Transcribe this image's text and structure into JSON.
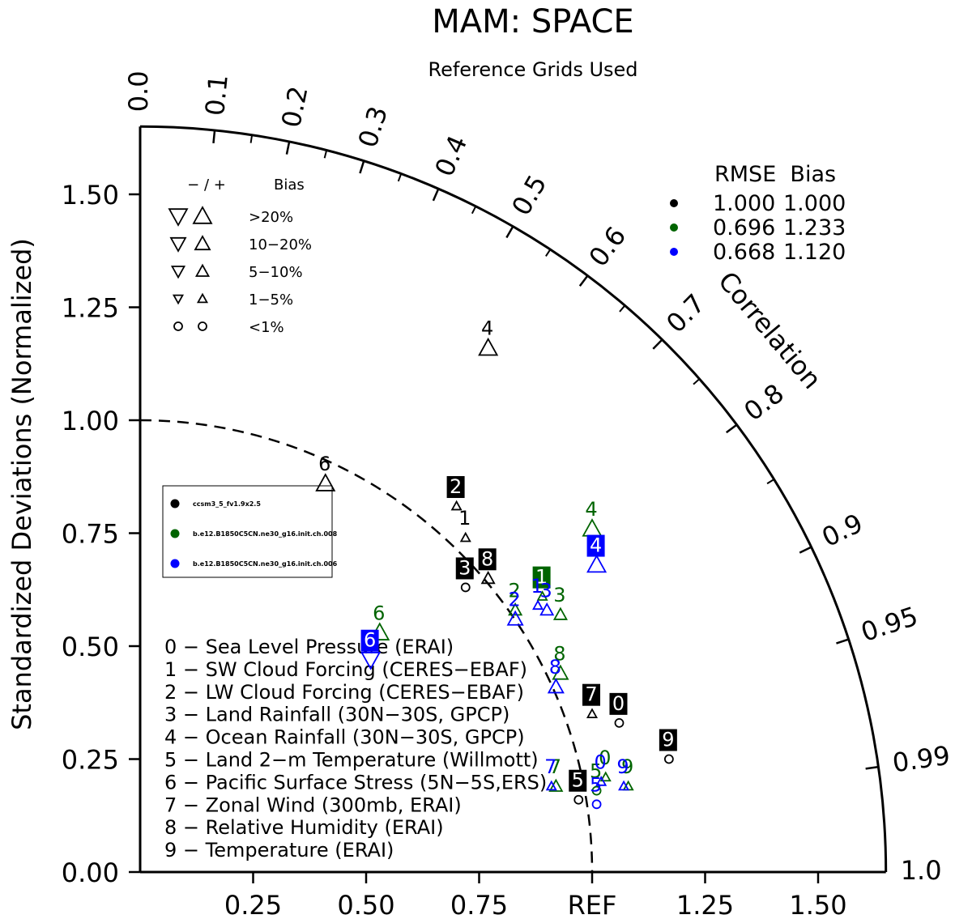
{
  "chart_data": {
    "type": "scatter",
    "subtype": "taylor-diagram",
    "title": "MAM: SPACE",
    "subtitle": "Reference Grids Used",
    "ylabel": "Standardized Deviations (Normalized)",
    "angular_label": "Correlation",
    "ref_label": "REF",
    "std_range": [
      0,
      1.65
    ],
    "y_ticks": [
      "0.00",
      "0.25",
      "0.50",
      "0.75",
      "1.00",
      "1.25",
      "1.50"
    ],
    "x_ticks": [
      "0.25",
      "0.50",
      "0.75",
      "REF",
      "1.25",
      "1.50"
    ],
    "corr_ticks": [
      "0.0",
      "0.1",
      "0.2",
      "0.3",
      "0.4",
      "0.5",
      "0.6",
      "0.7",
      "0.8",
      "0.9",
      "0.95",
      "0.99",
      "1.0"
    ],
    "bias_legend": {
      "header_sign": "− / +",
      "header_bias": "Bias",
      "levels": [
        ">20%",
        "10−20%",
        "5−10%",
        "1−5%",
        "<1%"
      ]
    },
    "stats_table": {
      "header": "RMSE  Bias",
      "rows": [
        {
          "color": "#000000",
          "rmse": "1.000",
          "bias": "1.000"
        },
        {
          "color": "#006400",
          "rmse": "0.696",
          "bias": "1.233"
        },
        {
          "color": "#0000ff",
          "rmse": "0.668",
          "bias": "1.120"
        }
      ]
    },
    "series": [
      {
        "name": "ccsm3_5_fv1.9x2.5",
        "color": "#000000",
        "points": [
          {
            "id": "0",
            "x": 1.06,
            "y": 0.33,
            "bias": "<1%",
            "sign": "+"
          },
          {
            "id": "1",
            "x": 0.72,
            "y": 0.74,
            "bias": "1-5%",
            "sign": "+"
          },
          {
            "id": "2",
            "x": 0.7,
            "y": 0.81,
            "bias": "1-5%",
            "sign": "+"
          },
          {
            "id": "3",
            "x": 0.72,
            "y": 0.63,
            "bias": "<1%",
            "sign": "+"
          },
          {
            "id": "4",
            "x": 0.77,
            "y": 1.16,
            "bias": ">20%",
            "sign": "+"
          },
          {
            "id": "5",
            "x": 0.97,
            "y": 0.16,
            "bias": "<1%",
            "sign": "+"
          },
          {
            "id": "6",
            "x": 0.41,
            "y": 0.86,
            "bias": ">20%",
            "sign": "+"
          },
          {
            "id": "7",
            "x": 1.0,
            "y": 0.35,
            "bias": "1-5%",
            "sign": "+"
          },
          {
            "id": "8",
            "x": 0.77,
            "y": 0.65,
            "bias": "5-10%",
            "sign": "+"
          },
          {
            "id": "9",
            "x": 1.17,
            "y": 0.25,
            "bias": "<1%",
            "sign": "+"
          }
        ]
      },
      {
        "name": "b.e12.B1850C5CN.ne30_g16.init.ch.008",
        "color": "#006400",
        "points": [
          {
            "id": "0",
            "x": 1.03,
            "y": 0.21,
            "bias": "1-5%",
            "sign": "+"
          },
          {
            "id": "1",
            "x": 0.89,
            "y": 0.61,
            "bias": "1-5%",
            "sign": "+"
          },
          {
            "id": "2",
            "x": 0.83,
            "y": 0.58,
            "bias": "5-10%",
            "sign": "+"
          },
          {
            "id": "3",
            "x": 0.93,
            "y": 0.57,
            "bias": "5-10%",
            "sign": "+"
          },
          {
            "id": "4",
            "x": 1.0,
            "y": 0.76,
            "bias": ">20%",
            "sign": "+"
          },
          {
            "id": "5",
            "x": 1.01,
            "y": 0.18,
            "bias": "<1%",
            "sign": "+"
          },
          {
            "id": "6",
            "x": 0.53,
            "y": 0.53,
            "bias": ">20%",
            "sign": "+"
          },
          {
            "id": "7",
            "x": 0.92,
            "y": 0.19,
            "bias": "5-10%",
            "sign": "+"
          },
          {
            "id": "8",
            "x": 0.93,
            "y": 0.44,
            "bias": "10-20%",
            "sign": "+"
          },
          {
            "id": "9",
            "x": 1.08,
            "y": 0.19,
            "bias": "1-5%",
            "sign": "+"
          }
        ]
      },
      {
        "name": "b.e12.B1850C5CN.ne30_g16.init.ch.006",
        "color": "#0000ff",
        "points": [
          {
            "id": "0",
            "x": 1.02,
            "y": 0.2,
            "bias": "1-5%",
            "sign": "+"
          },
          {
            "id": "1",
            "x": 0.88,
            "y": 0.59,
            "bias": "1-5%",
            "sign": "+"
          },
          {
            "id": "2",
            "x": 0.83,
            "y": 0.56,
            "bias": "10-20%",
            "sign": "+"
          },
          {
            "id": "3",
            "x": 0.9,
            "y": 0.58,
            "bias": "5-10%",
            "sign": "+"
          },
          {
            "id": "4",
            "x": 1.01,
            "y": 0.68,
            "bias": ">20%",
            "sign": "+"
          },
          {
            "id": "5",
            "x": 1.01,
            "y": 0.15,
            "bias": "<1%",
            "sign": "+"
          },
          {
            "id": "6",
            "x": 0.51,
            "y": 0.47,
            "bias": ">20%",
            "sign": "-"
          },
          {
            "id": "7",
            "x": 0.91,
            "y": 0.19,
            "bias": "1-5%",
            "sign": "+"
          },
          {
            "id": "8",
            "x": 0.92,
            "y": 0.41,
            "bias": "10-20%",
            "sign": "+"
          },
          {
            "id": "9",
            "x": 1.07,
            "y": 0.19,
            "bias": "1-5%",
            "sign": "+"
          }
        ]
      }
    ],
    "variables": [
      "0 − Sea Level Pressure (ERAI)",
      "1 − SW Cloud Forcing (CERES−EBAF)",
      "2 − LW Cloud Forcing (CERES−EBAF)",
      "3 − Land Rainfall (30N−30S, GPCP)",
      "4 − Ocean Rainfall (30N−30S, GPCP)",
      "5 − Land 2−m Temperature (Willmott)",
      "6 − Pacific Surface Stress (5N−5S,ERS)",
      "7 − Zonal Wind (300mb, ERAI)",
      "8 − Relative Humidity (ERAI)",
      "9 − Temperature (ERAI)"
    ]
  }
}
